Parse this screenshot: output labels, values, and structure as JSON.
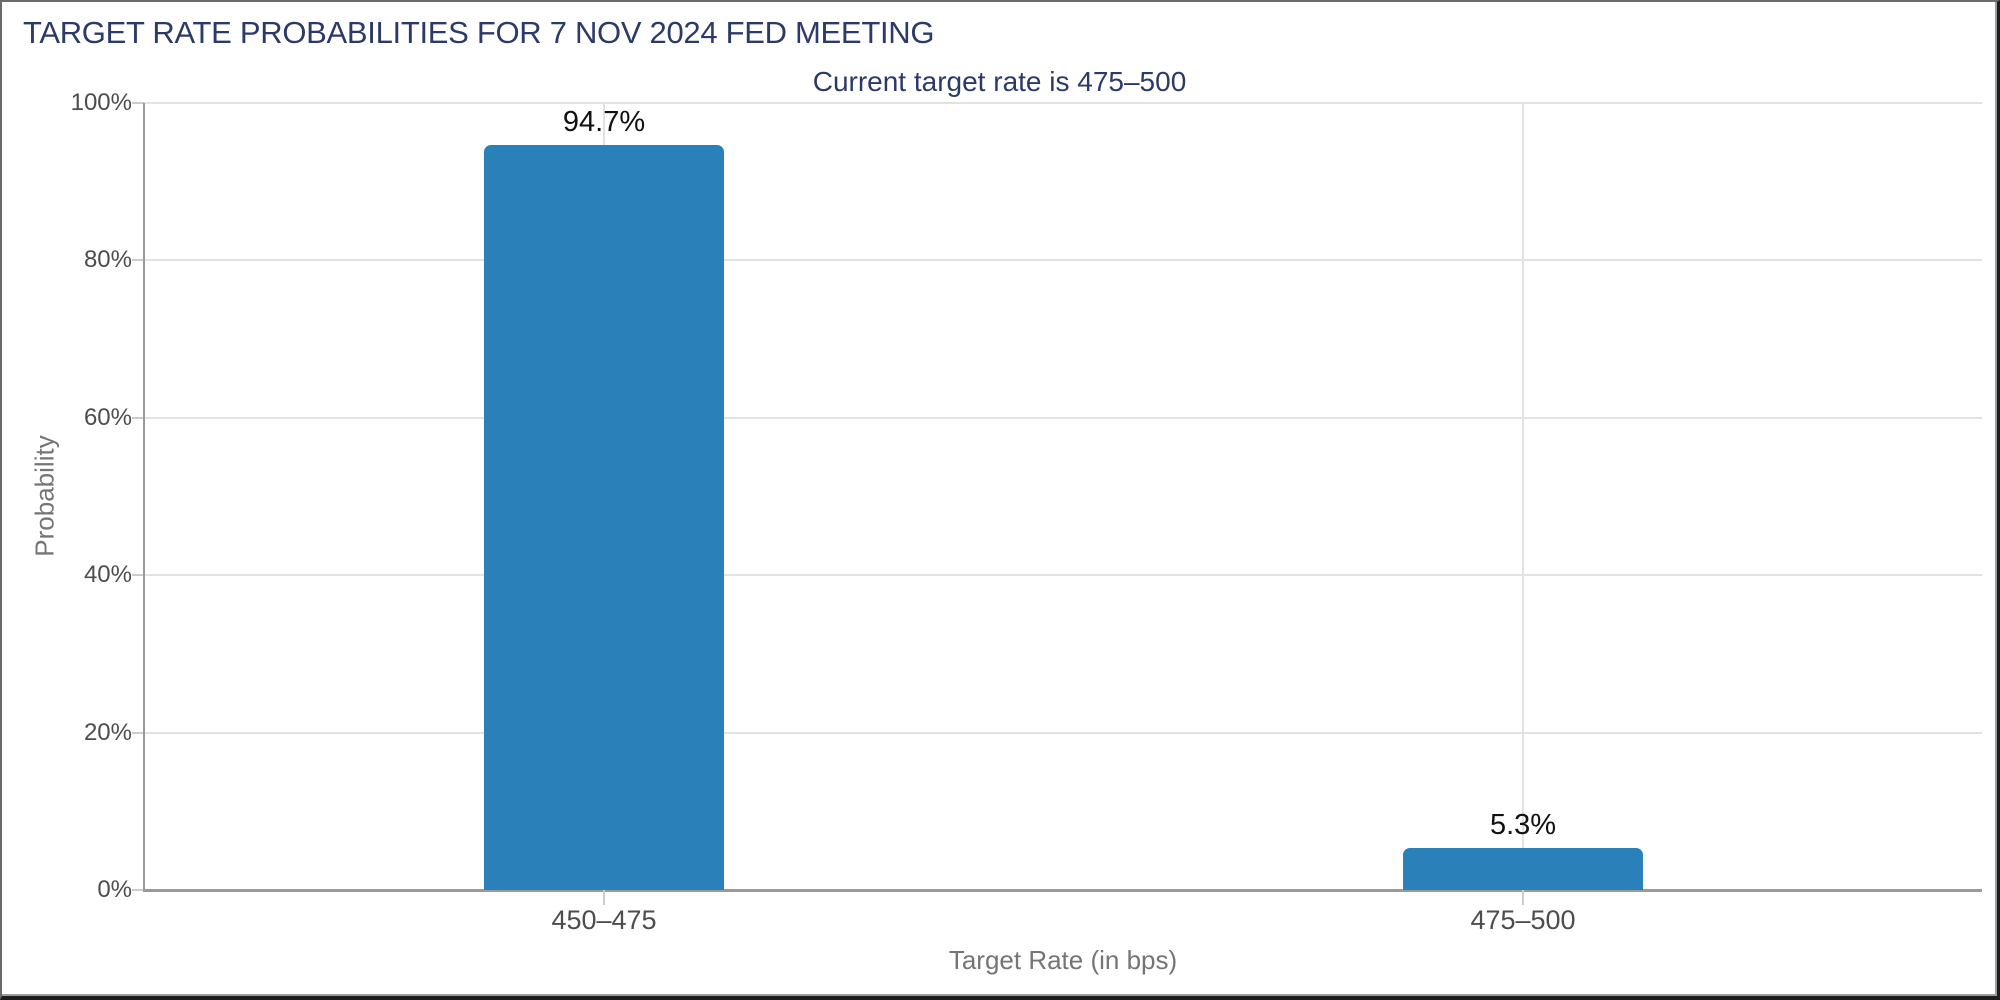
{
  "header": {
    "title": "TARGET RATE PROBABILITIES FOR 7 NOV 2024 FED MEETING",
    "subtitle": "Current target rate is 475–500"
  },
  "chart_data": {
    "type": "bar",
    "title": "TARGET RATE PROBABILITIES FOR 7 NOV 2024 FED MEETING",
    "subtitle": "Current target rate is 475–500",
    "categories": [
      "450–475",
      "475–500"
    ],
    "values": [
      94.7,
      5.3
    ],
    "data_labels": [
      "94.7%",
      "5.3%"
    ],
    "xlabel": "Target Rate (in bps)",
    "ylabel": "Probability",
    "ylim": [
      0,
      100
    ],
    "ytick_labels": [
      "0%",
      "20%",
      "40%",
      "60%",
      "80%",
      "100%"
    ],
    "grid": "on",
    "legend": "none"
  },
  "colors": {
    "heading_navy": "#2b3a68",
    "bar_blue": "#2a80b9",
    "axis_line_gray": "#9a9a9a",
    "gridline_gray": "#e2e2e2",
    "tick_mark_gray": "#cccccc",
    "tick_label_gray": "#4d4d4d",
    "axis_title_gray": "#757575",
    "data_label_black": "#111111"
  }
}
